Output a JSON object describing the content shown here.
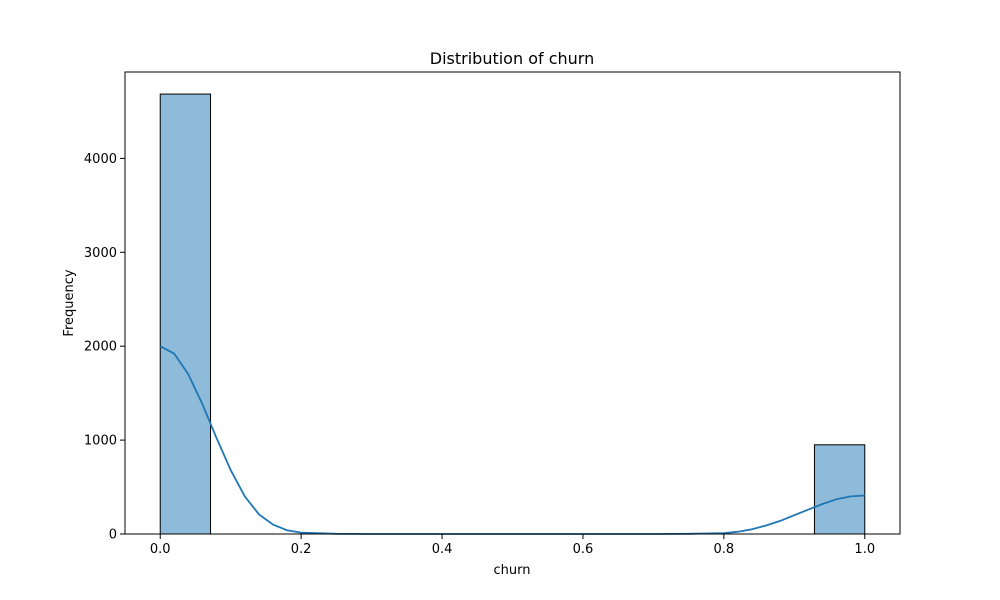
{
  "chart_data": {
    "type": "bar",
    "title": "Distribution of churn",
    "xlabel": "churn",
    "ylabel": "Frequency",
    "xlim": [
      -0.05,
      1.05
    ],
    "ylim": [
      0,
      4920
    ],
    "x_ticks": [
      0.0,
      0.2,
      0.4,
      0.6,
      0.8,
      1.0
    ],
    "x_tick_labels": [
      "0.0",
      "0.2",
      "0.4",
      "0.6",
      "0.8",
      "1.0"
    ],
    "y_ticks": [
      0,
      1000,
      2000,
      3000,
      4000
    ],
    "y_tick_labels": [
      "0",
      "1000",
      "2000",
      "3000",
      "4000"
    ],
    "grid": false,
    "bars": [
      {
        "x0": 0.0,
        "x1": 0.0714,
        "value": 4685
      },
      {
        "x0": 0.9286,
        "x1": 1.0,
        "value": 950
      }
    ],
    "kde": {
      "x": [
        0.0,
        0.02,
        0.04,
        0.06,
        0.08,
        0.1,
        0.12,
        0.14,
        0.16,
        0.18,
        0.2,
        0.25,
        0.3,
        0.4,
        0.5,
        0.6,
        0.7,
        0.75,
        0.8,
        0.82,
        0.84,
        0.86,
        0.88,
        0.9,
        0.92,
        0.94,
        0.96,
        0.98,
        1.0
      ],
      "y": [
        2000,
        1920,
        1700,
        1380,
        1020,
        680,
        400,
        210,
        100,
        40,
        15,
        2,
        0,
        0,
        0,
        0,
        0,
        2,
        10,
        25,
        50,
        90,
        140,
        200,
        260,
        320,
        370,
        400,
        410
      ]
    },
    "colors": {
      "bar_fill": "#8fbbda",
      "bar_edge": "#000000",
      "kde_line": "#1f77b4"
    }
  }
}
